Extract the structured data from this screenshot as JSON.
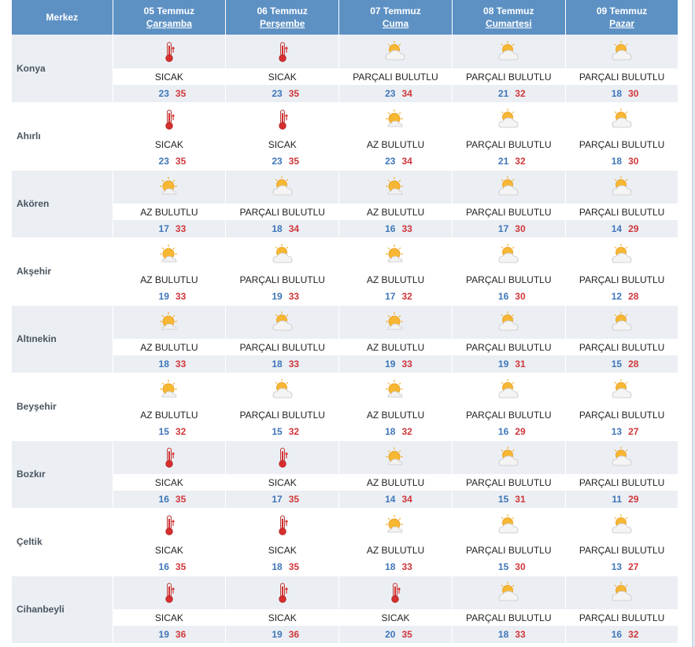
{
  "header": {
    "city_label": "Merkez",
    "days": [
      {
        "date": "05 Temmuz",
        "weekday": "Çarşamba"
      },
      {
        "date": "06 Temmuz",
        "weekday": "Perşembe"
      },
      {
        "date": "07 Temmuz",
        "weekday": "Cuma"
      },
      {
        "date": "08 Temmuz",
        "weekday": "Cumartesi"
      },
      {
        "date": "09 Temmuz",
        "weekday": "Pazar"
      }
    ]
  },
  "colors": {
    "header_bg": "#5d91c4",
    "row_shade": "#ebeff4",
    "min_temp": "#3f76b9",
    "max_temp": "#d0373a"
  },
  "rows": [
    {
      "city": "Konya",
      "days": [
        {
          "icon": "thermometer-hot-icon",
          "cond": "SICAK",
          "min": "23",
          "max": "35"
        },
        {
          "icon": "thermometer-hot-icon",
          "cond": "SICAK",
          "min": "23",
          "max": "35"
        },
        {
          "icon": "partly-cloudy-icon",
          "cond": "PARÇALI BULUTLU",
          "min": "23",
          "max": "34"
        },
        {
          "icon": "partly-cloudy-icon",
          "cond": "PARÇALI BULUTLU",
          "min": "21",
          "max": "32"
        },
        {
          "icon": "partly-cloudy-icon",
          "cond": "PARÇALI BULUTLU",
          "min": "18",
          "max": "30"
        }
      ]
    },
    {
      "city": "Ahırlı",
      "days": [
        {
          "icon": "thermometer-hot-icon",
          "cond": "SICAK",
          "min": "23",
          "max": "35"
        },
        {
          "icon": "thermometer-hot-icon",
          "cond": "SICAK",
          "min": "23",
          "max": "35"
        },
        {
          "icon": "mostly-sunny-icon",
          "cond": "AZ BULUTLU",
          "min": "23",
          "max": "34"
        },
        {
          "icon": "partly-cloudy-icon",
          "cond": "PARÇALI BULUTLU",
          "min": "21",
          "max": "32"
        },
        {
          "icon": "partly-cloudy-icon",
          "cond": "PARÇALI BULUTLU",
          "min": "18",
          "max": "30"
        }
      ]
    },
    {
      "city": "Akören",
      "days": [
        {
          "icon": "mostly-sunny-icon",
          "cond": "AZ BULUTLU",
          "min": "17",
          "max": "33"
        },
        {
          "icon": "partly-cloudy-icon",
          "cond": "PARÇALI BULUTLU",
          "min": "18",
          "max": "34"
        },
        {
          "icon": "mostly-sunny-icon",
          "cond": "AZ BULUTLU",
          "min": "16",
          "max": "33"
        },
        {
          "icon": "partly-cloudy-icon",
          "cond": "PARÇALI BULUTLU",
          "min": "17",
          "max": "30"
        },
        {
          "icon": "partly-cloudy-icon",
          "cond": "PARÇALI BULUTLU",
          "min": "14",
          "max": "29"
        }
      ]
    },
    {
      "city": "Akşehir",
      "days": [
        {
          "icon": "mostly-sunny-icon",
          "cond": "AZ BULUTLU",
          "min": "19",
          "max": "33"
        },
        {
          "icon": "partly-cloudy-icon",
          "cond": "PARÇALI BULUTLU",
          "min": "19",
          "max": "33"
        },
        {
          "icon": "mostly-sunny-icon",
          "cond": "AZ BULUTLU",
          "min": "17",
          "max": "32"
        },
        {
          "icon": "partly-cloudy-icon",
          "cond": "PARÇALI BULUTLU",
          "min": "16",
          "max": "30"
        },
        {
          "icon": "partly-cloudy-icon",
          "cond": "PARÇALI BULUTLU",
          "min": "12",
          "max": "28"
        }
      ]
    },
    {
      "city": "Altınekin",
      "days": [
        {
          "icon": "mostly-sunny-icon",
          "cond": "AZ BULUTLU",
          "min": "18",
          "max": "33"
        },
        {
          "icon": "partly-cloudy-icon",
          "cond": "PARÇALI BULUTLU",
          "min": "18",
          "max": "33"
        },
        {
          "icon": "mostly-sunny-icon",
          "cond": "AZ BULUTLU",
          "min": "19",
          "max": "33"
        },
        {
          "icon": "partly-cloudy-icon",
          "cond": "PARÇALI BULUTLU",
          "min": "19",
          "max": "31"
        },
        {
          "icon": "partly-cloudy-icon",
          "cond": "PARÇALI BULUTLU",
          "min": "15",
          "max": "28"
        }
      ]
    },
    {
      "city": "Beyşehir",
      "days": [
        {
          "icon": "mostly-sunny-icon",
          "cond": "AZ BULUTLU",
          "min": "15",
          "max": "32"
        },
        {
          "icon": "partly-cloudy-icon",
          "cond": "PARÇALI BULUTLU",
          "min": "15",
          "max": "32"
        },
        {
          "icon": "mostly-sunny-icon",
          "cond": "AZ BULUTLU",
          "min": "18",
          "max": "32"
        },
        {
          "icon": "partly-cloudy-icon",
          "cond": "PARÇALI BULUTLU",
          "min": "16",
          "max": "29"
        },
        {
          "icon": "partly-cloudy-icon",
          "cond": "PARÇALI BULUTLU",
          "min": "13",
          "max": "27"
        }
      ]
    },
    {
      "city": "Bozkır",
      "days": [
        {
          "icon": "thermometer-hot-icon",
          "cond": "SICAK",
          "min": "16",
          "max": "35"
        },
        {
          "icon": "thermometer-hot-icon",
          "cond": "SICAK",
          "min": "17",
          "max": "35"
        },
        {
          "icon": "mostly-sunny-icon",
          "cond": "AZ BULUTLU",
          "min": "14",
          "max": "34"
        },
        {
          "icon": "partly-cloudy-icon",
          "cond": "PARÇALI BULUTLU",
          "min": "15",
          "max": "31"
        },
        {
          "icon": "partly-cloudy-icon",
          "cond": "PARÇALI BULUTLU",
          "min": "11",
          "max": "29"
        }
      ]
    },
    {
      "city": "Çeltik",
      "days": [
        {
          "icon": "thermometer-hot-icon",
          "cond": "SICAK",
          "min": "16",
          "max": "35"
        },
        {
          "icon": "thermometer-hot-icon",
          "cond": "SICAK",
          "min": "18",
          "max": "35"
        },
        {
          "icon": "mostly-sunny-icon",
          "cond": "AZ BULUTLU",
          "min": "18",
          "max": "33"
        },
        {
          "icon": "partly-cloudy-icon",
          "cond": "PARÇALI BULUTLU",
          "min": "15",
          "max": "30"
        },
        {
          "icon": "partly-cloudy-icon",
          "cond": "PARÇALI BULUTLU",
          "min": "13",
          "max": "27"
        }
      ]
    },
    {
      "city": "Cihanbeyli",
      "days": [
        {
          "icon": "thermometer-hot-icon",
          "cond": "SICAK",
          "min": "19",
          "max": "36"
        },
        {
          "icon": "thermometer-hot-icon",
          "cond": "SICAK",
          "min": "19",
          "max": "36"
        },
        {
          "icon": "thermometer-hot-icon",
          "cond": "SICAK",
          "min": "20",
          "max": "35"
        },
        {
          "icon": "partly-cloudy-icon",
          "cond": "PARÇALI BULUTLU",
          "min": "18",
          "max": "33"
        },
        {
          "icon": "partly-cloudy-icon",
          "cond": "PARÇALI BULUTLU",
          "min": "16",
          "max": "32"
        }
      ]
    }
  ]
}
